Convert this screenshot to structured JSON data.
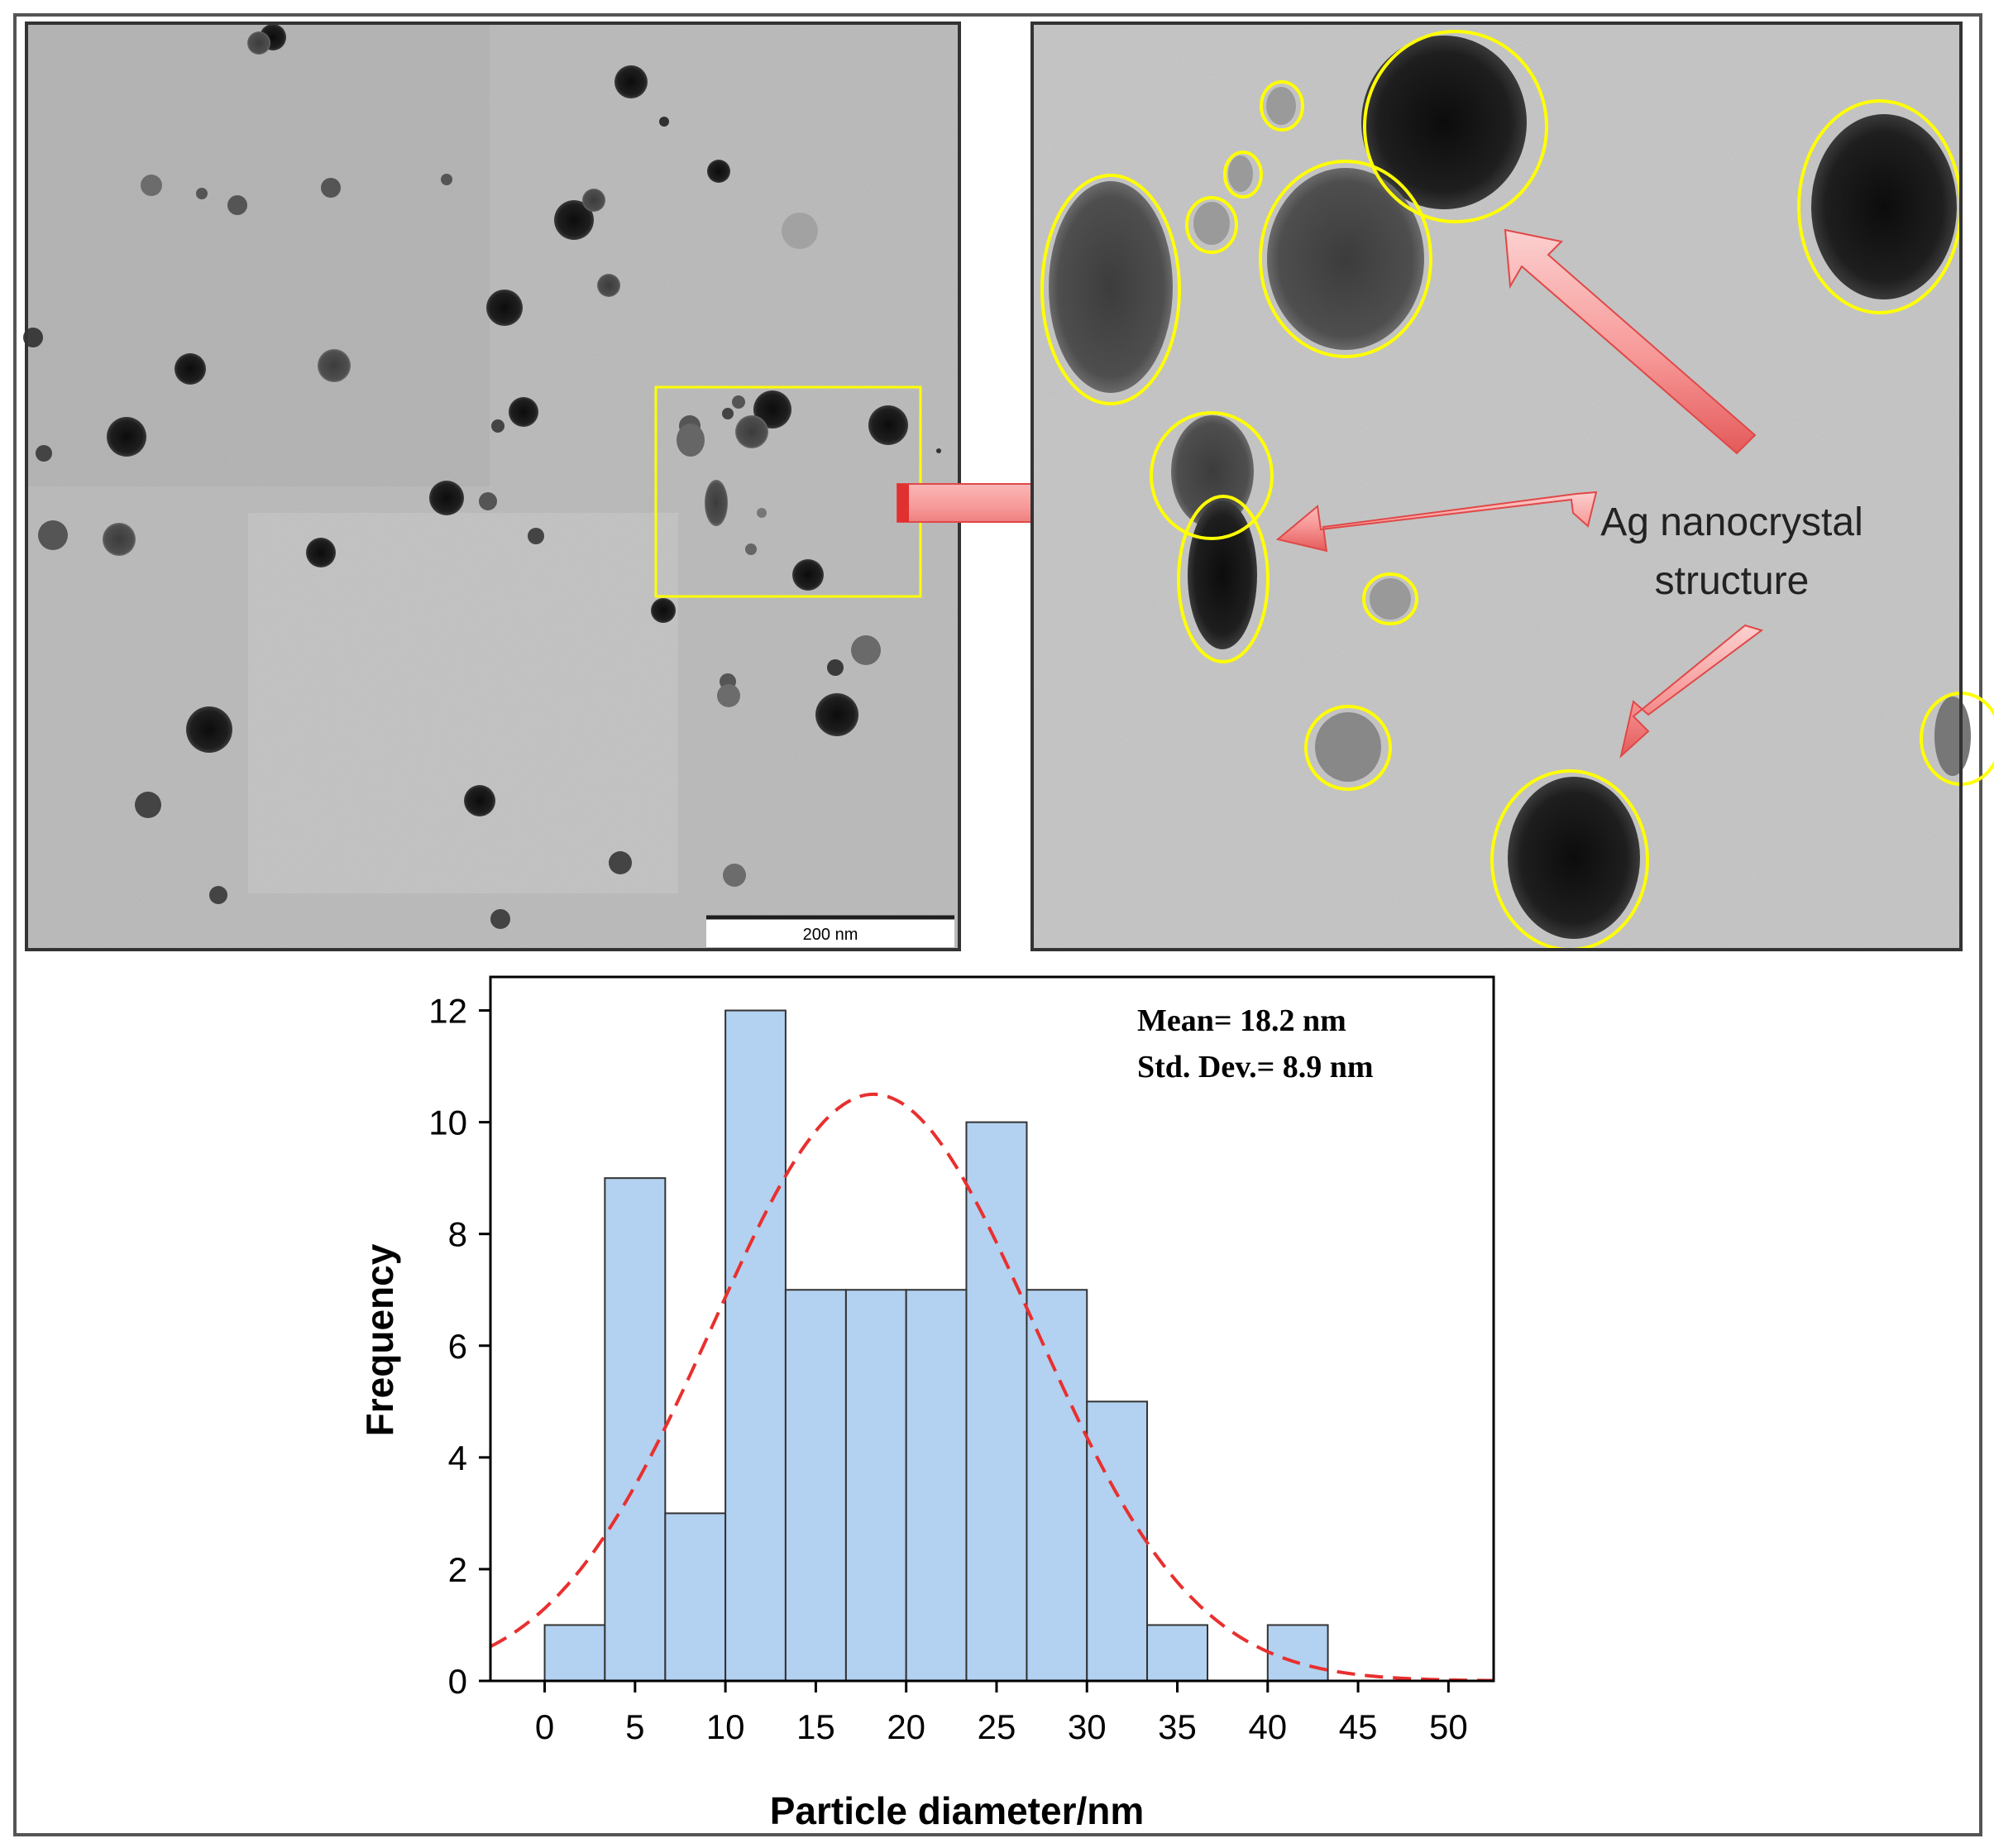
{
  "tem_overview": {
    "scale_bar_label": "200 nm"
  },
  "tem_zoom": {
    "annotation_line1": "Ag nanocrystal",
    "annotation_line2": "structure",
    "highlight_color": "#ffff00",
    "arrow_color": "#f36b6b"
  },
  "chart_data": {
    "type": "bar",
    "xlabel": "Particle diameter/nm",
    "ylabel": "Frequency",
    "xlim": [
      -3,
      52.5
    ],
    "ylim": [
      0,
      12.6
    ],
    "xticks": [
      0,
      5,
      10,
      15,
      20,
      25,
      30,
      35,
      40,
      45,
      50
    ],
    "yticks": [
      0,
      2,
      4,
      6,
      8,
      10,
      12
    ],
    "bin_width": 3.33,
    "bins": [
      {
        "start": 0,
        "end": 3.33,
        "value": 1
      },
      {
        "start": 3.33,
        "end": 6.67,
        "value": 9
      },
      {
        "start": 6.67,
        "end": 10,
        "value": 3
      },
      {
        "start": 10,
        "end": 13.33,
        "value": 12
      },
      {
        "start": 13.33,
        "end": 16.67,
        "value": 7
      },
      {
        "start": 16.67,
        "end": 20,
        "value": 7
      },
      {
        "start": 20,
        "end": 23.33,
        "value": 7
      },
      {
        "start": 23.33,
        "end": 26.67,
        "value": 10
      },
      {
        "start": 26.67,
        "end": 30,
        "value": 7
      },
      {
        "start": 30,
        "end": 33.33,
        "value": 5
      },
      {
        "start": 33.33,
        "end": 36.67,
        "value": 1
      },
      {
        "start": 36.67,
        "end": 40,
        "value": 0
      },
      {
        "start": 40,
        "end": 43.33,
        "value": 1
      }
    ],
    "fit_curve": {
      "type": "normal",
      "mean": 18.2,
      "std": 8.9,
      "peak": 10.5,
      "color": "#e8302f",
      "style": "dashed"
    },
    "annotations": [
      "Mean= 18.2 nm",
      "Std. Dev.= 8.9 nm"
    ],
    "bar_color": "#b3d1f0",
    "bar_edge_color": "#333333"
  }
}
